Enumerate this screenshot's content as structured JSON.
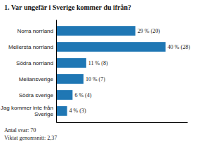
{
  "chart_data": {
    "type": "bar",
    "orientation": "horizontal",
    "title": "1. Var ungefär i Sverige kommer du ifrån?",
    "categories": [
      "Norra norrland",
      "Mellersta norrland",
      "Södra norrland",
      "Mellansverige",
      "Södra sverige",
      "Jag kommer inte från\nSverige"
    ],
    "values": [
      29,
      40,
      11,
      10,
      6,
      4
    ],
    "value_labels": [
      "29 % (20)",
      "40 % (28)",
      "11 % (8)",
      "10 % (7)",
      "6 % (4)",
      "4 % (3)"
    ],
    "data_labels": true,
    "xlim": [
      0,
      48
    ],
    "tick_labels": "y",
    "annotations": [
      "Antal svar: 70\nViktat genomsnitt: 2,37"
    ]
  }
}
